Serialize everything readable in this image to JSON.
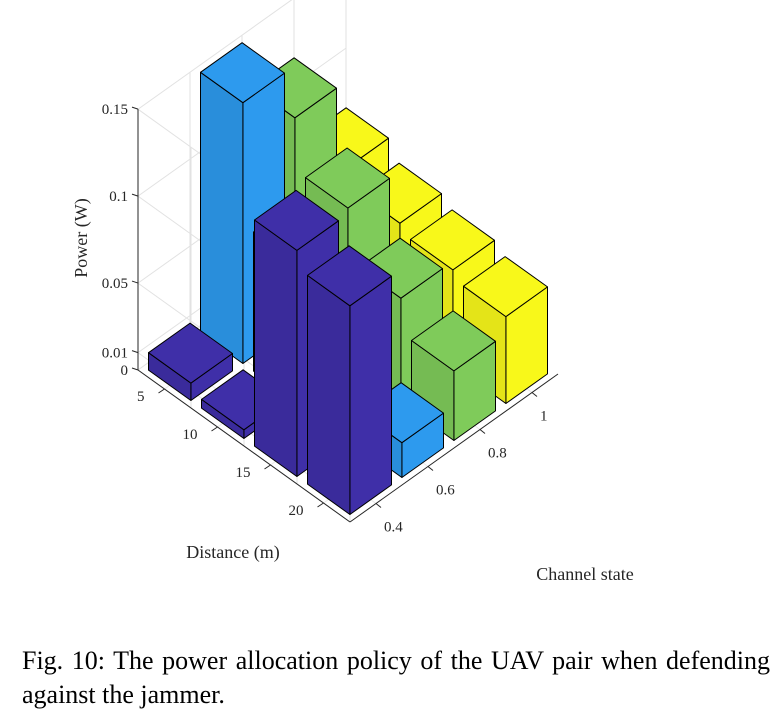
{
  "chart_data": {
    "type": "bar3d",
    "xlabel": "Channel state",
    "ylabel": "Distance (m)",
    "zlabel": "Power (W)",
    "x_ticks": [
      "0.4",
      "0.6",
      "0.8",
      "1"
    ],
    "y_ticks": [
      "5",
      "10",
      "15",
      "20"
    ],
    "z_ticks": [
      "0",
      "0.01",
      "0.05",
      "0.1",
      "0.15"
    ],
    "zlim": [
      0,
      0.15
    ],
    "grid": true,
    "colors": [
      "#3F2FA8",
      "#2D9AEE",
      "#7FCB5A",
      "#F8F81A"
    ],
    "x": [
      0.4,
      0.6,
      0.8,
      1
    ],
    "y": [
      5,
      10,
      15,
      20
    ],
    "values": [
      [
        0.01,
        0.15,
        0.12,
        0.07
      ],
      [
        0.005,
        0.08,
        0.09,
        0.06
      ],
      [
        0.13,
        0.07,
        0.06,
        0.055
      ],
      [
        0.12,
        0.02,
        0.04,
        0.05
      ]
    ]
  },
  "caption": "Fig. 10: The power allocation policy of the UAV pair when defending against the jammer."
}
